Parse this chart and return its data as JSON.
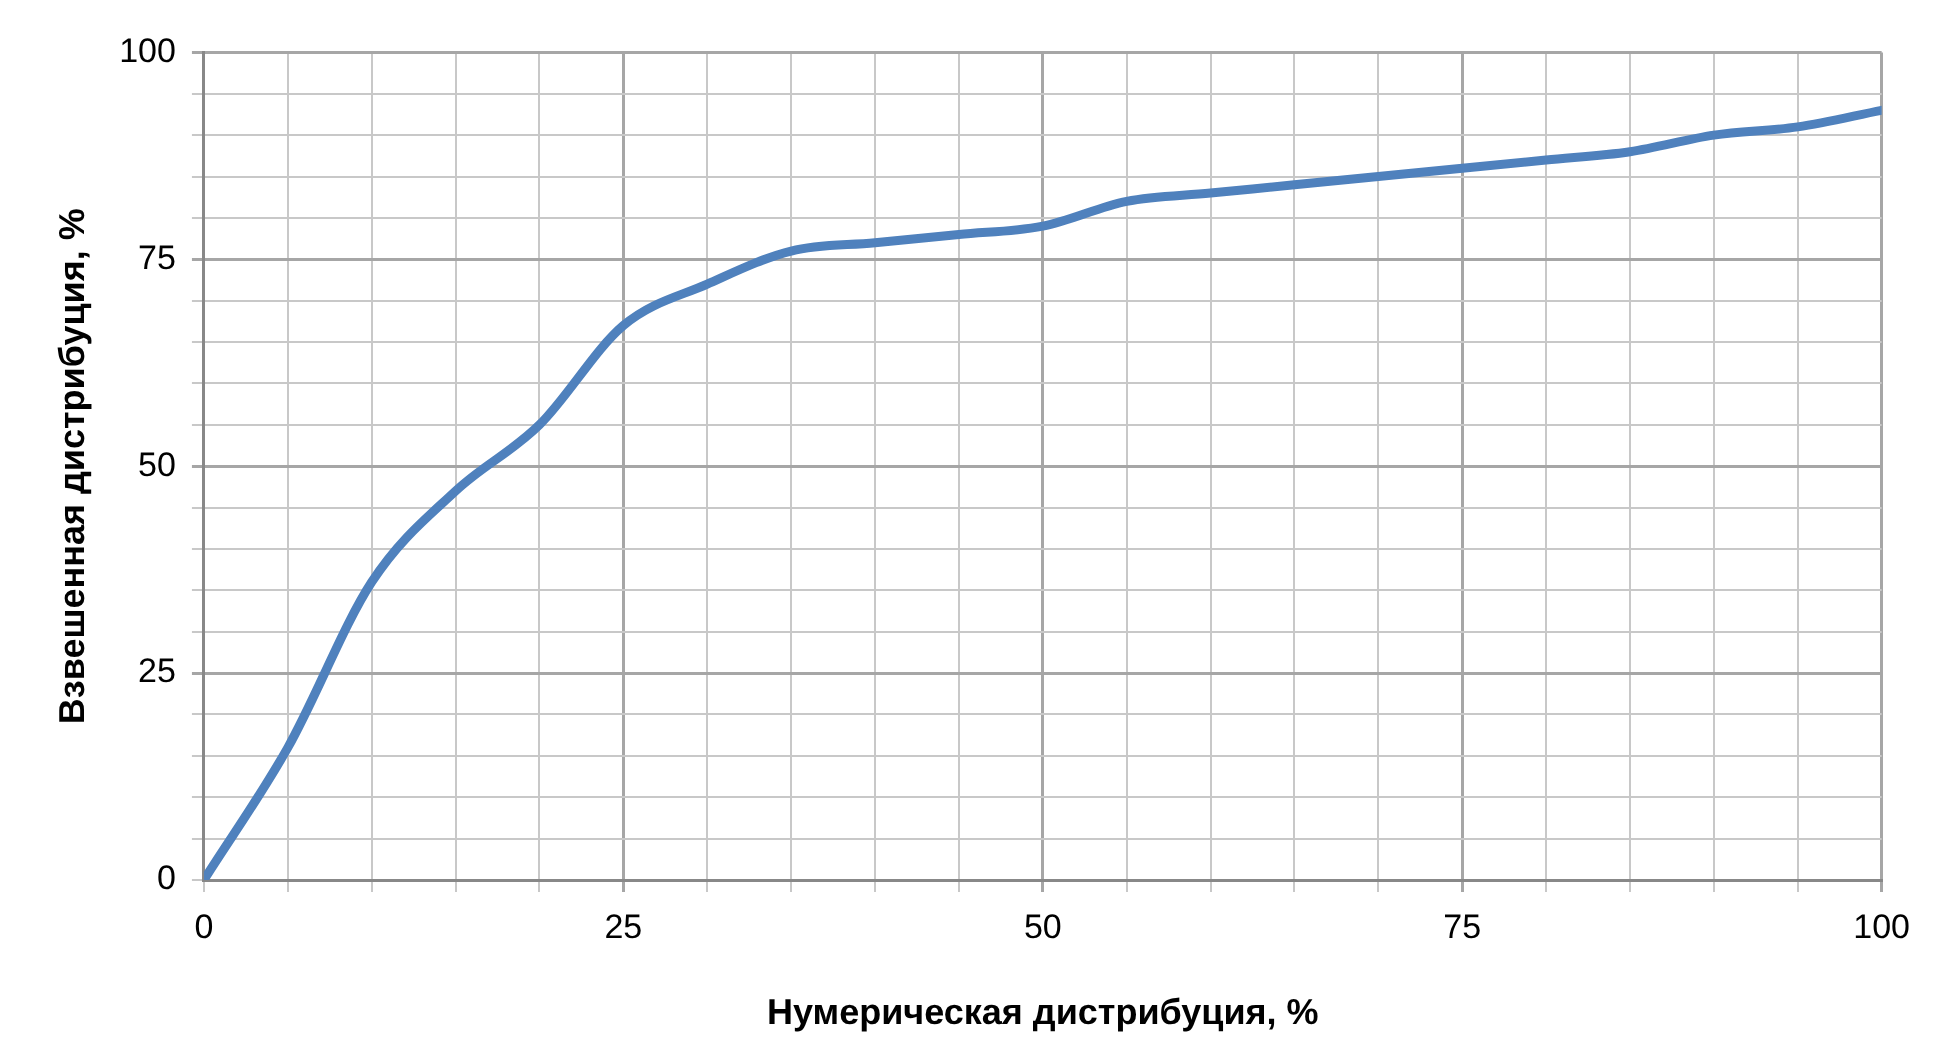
{
  "chart_data": {
    "type": "line",
    "xlabel": "Нумерическая дистрибуция, %",
    "ylabel": "Взвешенная дистрибуция, %",
    "x": [
      0,
      5,
      10,
      15,
      20,
      25,
      30,
      35,
      40,
      45,
      50,
      55,
      60,
      65,
      70,
      75,
      80,
      85,
      90,
      95,
      100
    ],
    "series": [
      {
        "color": "#4f81bd",
        "values": [
          0,
          16,
          36,
          47,
          55,
          67,
          72,
          76,
          77,
          78,
          79,
          82,
          83,
          84,
          85,
          86,
          87,
          88,
          90,
          91,
          93
        ]
      }
    ],
    "xlim": [
      0,
      100
    ],
    "ylim": [
      0,
      100
    ],
    "xticks": [
      0,
      {
        "value": 5,
        "label": null
      },
      {
        "value": 10,
        "label": null
      },
      {
        "value": 15,
        "label": null
      },
      {
        "value": 20,
        "label": null
      },
      25,
      {
        "value": 30,
        "label": null
      },
      {
        "value": 35,
        "label": null
      },
      {
        "value": 40,
        "label": null
      },
      {
        "value": 45,
        "label": null
      },
      50,
      {
        "value": 55,
        "label": null
      },
      {
        "value": 60,
        "label": null
      },
      {
        "value": 65,
        "label": null
      },
      {
        "value": 70,
        "label": null
      },
      75,
      {
        "value": 80,
        "label": null
      },
      {
        "value": 85,
        "label": null
      },
      {
        "value": 90,
        "label": null
      },
      {
        "value": 95,
        "label": null
      },
      100
    ],
    "yticks": [
      0,
      {
        "value": 5,
        "label": null
      },
      {
        "value": 10,
        "label": null
      },
      {
        "value": 15,
        "label": null
      },
      {
        "value": 20,
        "label": null
      },
      25,
      {
        "value": 30,
        "label": null
      },
      {
        "value": 35,
        "label": null
      },
      {
        "value": 40,
        "label": null
      },
      {
        "value": 45,
        "label": null
      },
      50,
      {
        "value": 55,
        "label": null
      },
      {
        "value": 60,
        "label": null
      },
      {
        "value": 65,
        "label": null
      },
      {
        "value": 70,
        "label": null
      },
      75,
      {
        "value": 80,
        "label": null
      },
      {
        "value": 85,
        "label": null
      },
      {
        "value": 90,
        "label": null
      },
      {
        "value": 95,
        "label": null
      },
      100
    ],
    "grid": true,
    "legend": false,
    "marker": "none",
    "line_style": "solid"
  }
}
